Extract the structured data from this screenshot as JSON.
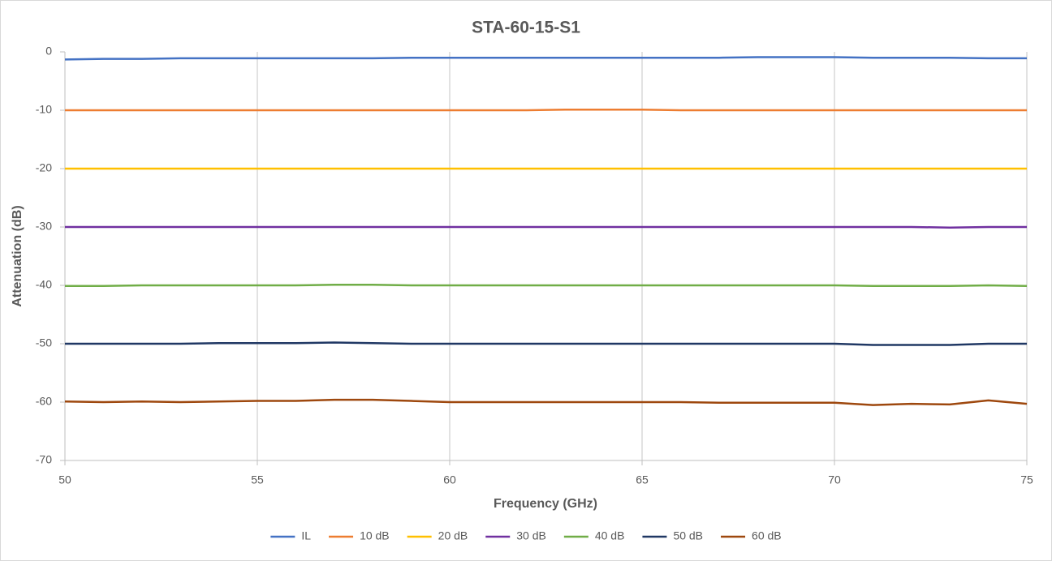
{
  "chart_data": {
    "type": "line",
    "title": "STA-60-15-S1",
    "x_label": "Frequency (GHz)",
    "y_label": "Attenuation (dB)",
    "x": [
      50,
      51,
      52,
      53,
      54,
      55,
      56,
      57,
      58,
      59,
      60,
      61,
      62,
      63,
      64,
      65,
      66,
      67,
      68,
      69,
      70,
      71,
      72,
      73,
      74,
      75
    ],
    "xlim": [
      50,
      75
    ],
    "xticks": [
      50,
      55,
      60,
      65,
      70,
      75
    ],
    "ylim": [
      -70,
      0
    ],
    "yticks": [
      0,
      -10,
      -20,
      -30,
      -40,
      -50,
      -60,
      -70
    ],
    "grid": "x",
    "legend": "bottom",
    "series": [
      {
        "name": "IL",
        "color": "#4472c4",
        "values": [
          -1.3,
          -1.2,
          -1.2,
          -1.1,
          -1.1,
          -1.1,
          -1.1,
          -1.1,
          -1.1,
          -1.0,
          -1.0,
          -1.0,
          -1.0,
          -1.0,
          -1.0,
          -1.0,
          -1.0,
          -1.0,
          -0.9,
          -0.9,
          -0.9,
          -1.0,
          -1.0,
          -1.0,
          -1.1,
          -1.1
        ]
      },
      {
        "name": "10 dB",
        "color": "#ed7d31",
        "values": [
          -10.0,
          -10.0,
          -10.0,
          -10.0,
          -10.0,
          -10.0,
          -10.0,
          -10.0,
          -10.0,
          -10.0,
          -10.0,
          -10.0,
          -10.0,
          -9.9,
          -9.9,
          -9.9,
          -10.0,
          -10.0,
          -10.0,
          -10.0,
          -10.0,
          -10.0,
          -10.0,
          -10.0,
          -10.0,
          -10.0
        ]
      },
      {
        "name": "20 dB",
        "color": "#ffc000",
        "values": [
          -20.0,
          -20.0,
          -20.0,
          -20.0,
          -20.0,
          -20.0,
          -20.0,
          -20.0,
          -20.0,
          -20.0,
          -20.0,
          -20.0,
          -20.0,
          -20.0,
          -20.0,
          -20.0,
          -20.0,
          -20.0,
          -20.0,
          -20.0,
          -20.0,
          -20.0,
          -20.0,
          -20.0,
          -20.0,
          -20.0
        ]
      },
      {
        "name": "30 dB",
        "color": "#7030a0",
        "values": [
          -30.0,
          -30.0,
          -30.0,
          -30.0,
          -30.0,
          -30.0,
          -30.0,
          -30.0,
          -30.0,
          -30.0,
          -30.0,
          -30.0,
          -30.0,
          -30.0,
          -30.0,
          -30.0,
          -30.0,
          -30.0,
          -30.0,
          -30.0,
          -30.0,
          -30.0,
          -30.0,
          -30.1,
          -30.0,
          -30.0
        ]
      },
      {
        "name": "40 dB",
        "color": "#70ad47",
        "values": [
          -40.1,
          -40.1,
          -40.0,
          -40.0,
          -40.0,
          -40.0,
          -40.0,
          -39.9,
          -39.9,
          -40.0,
          -40.0,
          -40.0,
          -40.0,
          -40.0,
          -40.0,
          -40.0,
          -40.0,
          -40.0,
          -40.0,
          -40.0,
          -40.0,
          -40.1,
          -40.1,
          -40.1,
          -40.0,
          -40.1
        ]
      },
      {
        "name": "50 dB",
        "color": "#203864",
        "values": [
          -50.0,
          -50.0,
          -50.0,
          -50.0,
          -49.9,
          -49.9,
          -49.9,
          -49.8,
          -49.9,
          -50.0,
          -50.0,
          -50.0,
          -50.0,
          -50.0,
          -50.0,
          -50.0,
          -50.0,
          -50.0,
          -50.0,
          -50.0,
          -50.0,
          -50.2,
          -50.2,
          -50.2,
          -50.0,
          -50.0
        ]
      },
      {
        "name": "60 dB",
        "color": "#9e480e",
        "values": [
          -59.9,
          -60.0,
          -59.9,
          -60.0,
          -59.9,
          -59.8,
          -59.8,
          -59.6,
          -59.6,
          -59.8,
          -60.0,
          -60.0,
          -60.0,
          -60.0,
          -60.0,
          -60.0,
          -60.0,
          -60.1,
          -60.1,
          -60.1,
          -60.1,
          -60.5,
          -60.3,
          -60.4,
          -59.7,
          -60.3
        ]
      }
    ]
  }
}
